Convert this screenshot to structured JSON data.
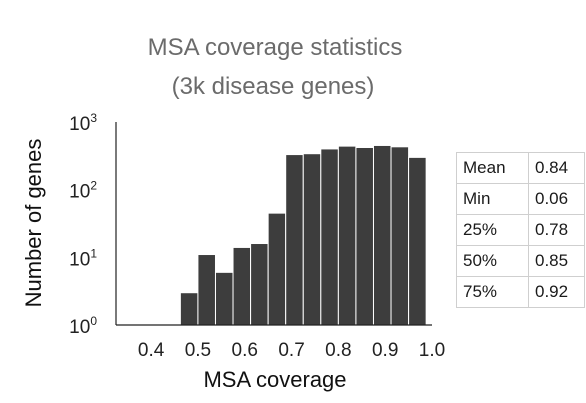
{
  "chart_data": {
    "type": "bar",
    "title": "MSA coverage statistics",
    "subtitle": "(3k disease genes)",
    "xlabel": "MSA coverage",
    "ylabel": "Number of genes",
    "yscale": "log",
    "xlim": [
      0.325,
      1.0
    ],
    "ylim": [
      1,
      1000
    ],
    "xticks": [
      "0.4",
      "0.5",
      "0.6",
      "0.7",
      "0.8",
      "0.9",
      "1.0"
    ],
    "xtick_values": [
      0.4,
      0.5,
      0.6,
      0.7,
      0.8,
      0.9,
      1.0
    ],
    "yticks": [
      {
        "base": "10",
        "exp": "0"
      },
      {
        "base": "10",
        "exp": "1"
      },
      {
        "base": "10",
        "exp": "2"
      },
      {
        "base": "10",
        "exp": "3"
      }
    ],
    "ytick_values": [
      1,
      10,
      100,
      1000
    ],
    "bin_width": 0.0375,
    "bins": [
      {
        "start": 0.4625,
        "count": 3
      },
      {
        "start": 0.5,
        "count": 11
      },
      {
        "start": 0.5375,
        "count": 6
      },
      {
        "start": 0.575,
        "count": 14
      },
      {
        "start": 0.6125,
        "count": 16
      },
      {
        "start": 0.65,
        "count": 45
      },
      {
        "start": 0.6875,
        "count": 330
      },
      {
        "start": 0.725,
        "count": 340
      },
      {
        "start": 0.7625,
        "count": 400
      },
      {
        "start": 0.8,
        "count": 440
      },
      {
        "start": 0.8375,
        "count": 420
      },
      {
        "start": 0.875,
        "count": 450
      },
      {
        "start": 0.9125,
        "count": 430
      },
      {
        "start": 0.95,
        "count": 300
      }
    ],
    "bar_color": "#3d3d3d"
  },
  "stats": [
    {
      "label": "Mean",
      "value": "0.84"
    },
    {
      "label": "Min",
      "value": "0.06"
    },
    {
      "label": "25%",
      "value": "0.78"
    },
    {
      "label": "50%",
      "value": "0.85"
    },
    {
      "label": "75%",
      "value": "0.92"
    }
  ]
}
